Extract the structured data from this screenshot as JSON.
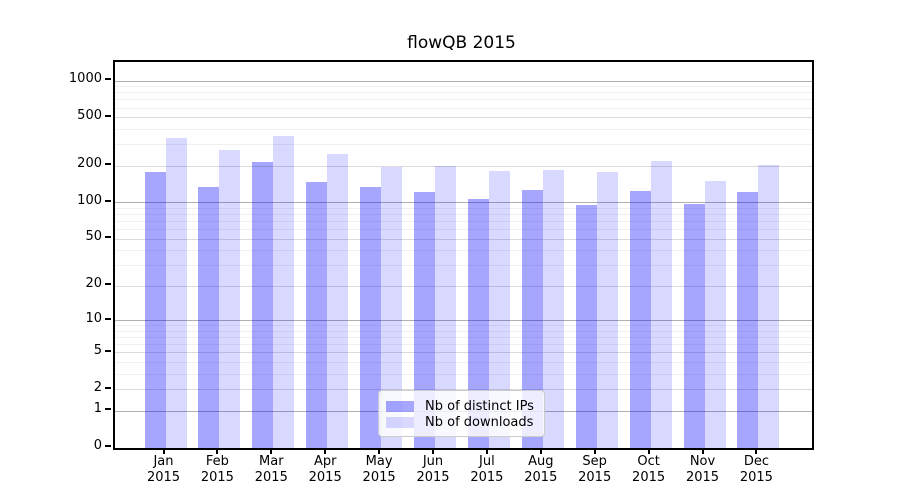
{
  "chart_data": {
    "type": "bar",
    "title": "flowQB 2015",
    "categories": [
      "Jan",
      "Feb",
      "Mar",
      "Apr",
      "May",
      "Jun",
      "Jul",
      "Aug",
      "Sep",
      "Oct",
      "Nov",
      "Dec"
    ],
    "x_year_label": "2015",
    "series": [
      {
        "name": "Nb of distinct IPs",
        "color": "rgba(0,0,255,0.35)",
        "values": [
          178,
          135,
          215,
          148,
          134,
          124,
          108,
          128,
          96,
          126,
          98,
          122
        ]
      },
      {
        "name": "Nb of downloads",
        "color": "rgba(0,0,255,0.15)",
        "values": [
          343,
          274,
          352,
          250,
          198,
          201,
          183,
          186,
          179,
          221,
          152,
          204
        ]
      }
    ],
    "yscale": "log1p",
    "ylim": [
      0,
      1430
    ],
    "yticks": [
      0,
      1,
      2,
      5,
      10,
      20,
      50,
      100,
      200,
      500,
      1000
    ],
    "grid": true,
    "legend_position": "lower center"
  },
  "colors": {
    "ips_bar": "rgba(0,0,255,0.35)",
    "downloads_bar": "rgba(0,0,255,0.15)",
    "grid_major": "#b0b0b0",
    "grid_mid": "#dbdbdb",
    "grid_minor": "#f0f0f0",
    "spine": "#000000",
    "legend_border": "#cccccc"
  }
}
